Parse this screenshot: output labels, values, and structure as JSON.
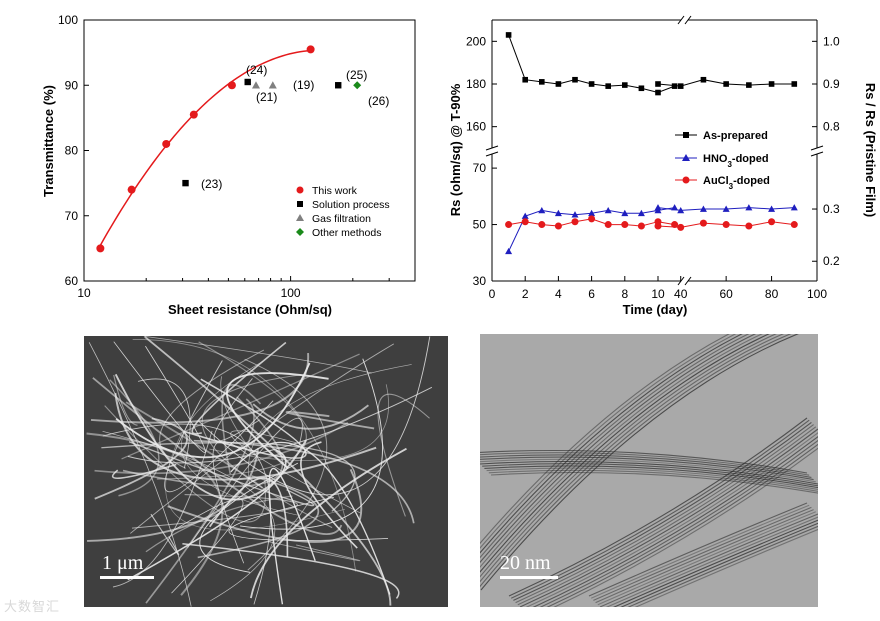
{
  "chart_data": [
    {
      "type": "scatter",
      "xscale": "log",
      "xlabel": "Sheet resistance (Ohm/sq)",
      "ylabel": "Transmittance (%)",
      "xlim": [
        10,
        400
      ],
      "ylim": [
        60,
        100
      ],
      "xticks": [
        "10",
        "100"
      ],
      "yticks": [
        "60",
        "70",
        "80",
        "90",
        "100"
      ],
      "series": [
        {
          "name": "This work",
          "marker": "circle",
          "color": "#e41a1c",
          "fit_line": true,
          "points": [
            [
              12,
              65
            ],
            [
              17,
              74
            ],
            [
              25,
              81
            ],
            [
              34,
              85.5
            ],
            [
              52,
              90
            ],
            [
              125,
              95.5
            ]
          ]
        },
        {
          "name": "Solution process",
          "marker": "square",
          "color": "#000000",
          "points": [
            [
              31,
              75
            ],
            [
              62,
              90.5
            ],
            [
              170,
              90
            ]
          ]
        },
        {
          "name": "Gas filtration",
          "marker": "triangle",
          "color": "#808080",
          "points": [
            [
              68,
              90
            ],
            [
              82,
              90
            ]
          ]
        },
        {
          "name": "Other methods",
          "marker": "diamond",
          "color": "#1a8a1a",
          "points": [
            [
              210,
              90
            ]
          ]
        }
      ],
      "annotations": [
        "(23)",
        "(24)",
        "(21)",
        "(19)",
        "(25)",
        "(26)"
      ],
      "legend": [
        "This work",
        "Solution process",
        "Gas filtration",
        "Other methods"
      ]
    },
    {
      "type": "line",
      "xlabel": "Time (day)",
      "ylabel": "Rs (ohm/sq) @ T-90%",
      "ylabel_right": "Rs / Rs (Pristine Film)",
      "x_ticks_left": [
        "0",
        "2",
        "4",
        "6",
        "8",
        "10"
      ],
      "x_ticks_right": [
        "40",
        "60",
        "80",
        "100"
      ],
      "yticks_upper": [
        "160",
        "180",
        "200"
      ],
      "yticks_lower": [
        "30",
        "50",
        "70"
      ],
      "yticks_right_upper": [
        "0.8",
        "0.9",
        "1.0"
      ],
      "yticks_right_lower": [
        "0.2",
        "0.3"
      ],
      "series": [
        {
          "name": "As-prepared",
          "marker": "square",
          "color": "#000000",
          "left_points": [
            [
              1,
              203
            ],
            [
              2,
              182
            ],
            [
              3,
              181
            ],
            [
              4,
              180
            ],
            [
              5,
              182
            ],
            [
              6,
              180
            ],
            [
              7,
              179
            ],
            [
              8,
              179.5
            ],
            [
              9,
              178
            ],
            [
              10,
              176
            ],
            [
              11,
              179
            ]
          ],
          "right_points": [
            [
              30,
              180
            ],
            [
              40,
              179
            ],
            [
              50,
              182
            ],
            [
              60,
              180
            ],
            [
              70,
              179.5
            ],
            [
              80,
              180
            ],
            [
              90,
              180
            ]
          ]
        },
        {
          "name": "HNO3-doped",
          "marker": "triangle",
          "color": "#1f1fbf",
          "left_points": [
            [
              1,
              40.5
            ],
            [
              2,
              53
            ],
            [
              3,
              55
            ],
            [
              4,
              54
            ],
            [
              5,
              53.5
            ],
            [
              6,
              54
            ],
            [
              7,
              55
            ],
            [
              8,
              54
            ],
            [
              9,
              54
            ],
            [
              10,
              55
            ],
            [
              11,
              56
            ]
          ],
          "right_points": [
            [
              30,
              56
            ],
            [
              40,
              55
            ],
            [
              50,
              55.5
            ],
            [
              60,
              55.5
            ],
            [
              70,
              56
            ],
            [
              80,
              55.5
            ],
            [
              90,
              56
            ]
          ]
        },
        {
          "name": "AuCl3-doped",
          "marker": "circle",
          "color": "#e41a1c",
          "left_points": [
            [
              1,
              50
            ],
            [
              2,
              51
            ],
            [
              3,
              50
            ],
            [
              4,
              49.5
            ],
            [
              5,
              51
            ],
            [
              6,
              52
            ],
            [
              7,
              50
            ],
            [
              8,
              50
            ],
            [
              9,
              49.5
            ],
            [
              10,
              51
            ],
            [
              11,
              50
            ]
          ],
          "right_points": [
            [
              30,
              49.5
            ],
            [
              40,
              49
            ],
            [
              50,
              50.5
            ],
            [
              60,
              50
            ],
            [
              70,
              49.5
            ],
            [
              80,
              51
            ],
            [
              90,
              50
            ]
          ]
        }
      ],
      "legend": [
        "As-prepared",
        "HNO3-doped",
        "AuCl3-doped"
      ]
    }
  ],
  "images": {
    "sem_scale": "1 μm",
    "tem_scale": "20 nm"
  },
  "watermark": "大数智汇"
}
